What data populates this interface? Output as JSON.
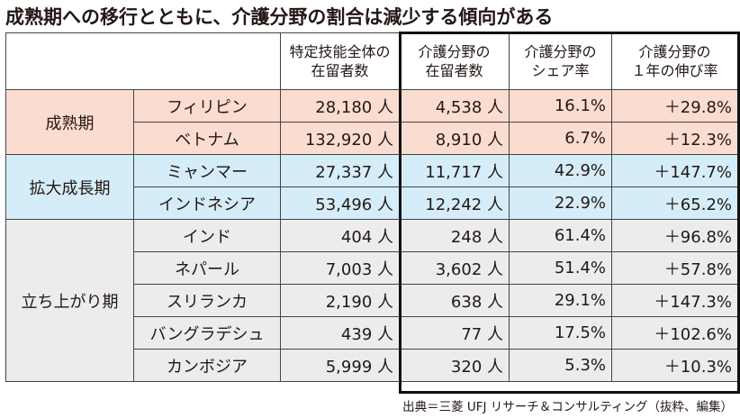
{
  "title": "成熟期への移行とともに、介護分野の割合は減少する傾向がある",
  "headers": {
    "total": [
      "特定技能全体の",
      "在留者数"
    ],
    "care": [
      "介護分野の",
      "在留者数"
    ],
    "share": [
      "介護分野の",
      "シェア率"
    ],
    "growth": [
      "介護分野の",
      "１年の伸び率"
    ]
  },
  "groups": [
    {
      "label": "成熟期",
      "rows": [
        {
          "country": "フィリピン",
          "total": "28,180 人",
          "care": "4,538 人",
          "share": "16.1%",
          "growth": "＋29.8%"
        },
        {
          "country": "ベトナム",
          "total": "132,920 人",
          "care": "8,910 人",
          "share": "6.7%",
          "growth": "＋12.3%"
        }
      ]
    },
    {
      "label": "拡大成長期",
      "rows": [
        {
          "country": "ミャンマー",
          "total": "27,337 人",
          "care": "11,717 人",
          "share": "42.9%",
          "growth": "＋147.7%"
        },
        {
          "country": "インドネシア",
          "total": "53,496 人",
          "care": "12,242 人",
          "share": "22.9%",
          "growth": "＋65.2%"
        }
      ]
    },
    {
      "label": "立ち上がり期",
      "rows": [
        {
          "country": "インド",
          "total": "404 人",
          "care": "248 人",
          "share": "61.4%",
          "growth": "＋96.8%"
        },
        {
          "country": "ネパール",
          "total": "7,003 人",
          "care": "3,602 人",
          "share": "51.4%",
          "growth": "＋57.8%"
        },
        {
          "country": "スリランカ",
          "total": "2,190 人",
          "care": "638 人",
          "share": "29.1%",
          "growth": "＋147.3%"
        },
        {
          "country": "バングラデシュ",
          "total": "439 人",
          "care": "77 人",
          "share": "17.5%",
          "growth": "＋102.6%"
        },
        {
          "country": "カンボジア",
          "total": "5,999 人",
          "care": "320 人",
          "share": "5.3%",
          "growth": "＋10.3%"
        }
      ]
    }
  ],
  "colors": {
    "mature": "#fbdcd0",
    "expansion": "#d5edf8",
    "startup": "#ececec"
  },
  "source": "出典＝三菱 UFJ リサーチ＆コンサルティング（抜粋、編集）"
}
